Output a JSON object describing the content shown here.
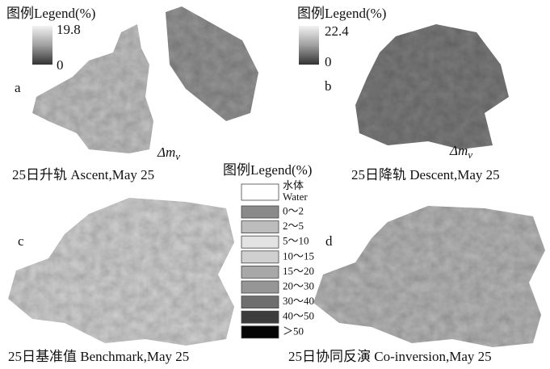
{
  "panels": [
    {
      "label": "a",
      "legend_title": "图例Legend(%)",
      "legend_max": "19.8",
      "legend_min": "0",
      "axis_label": "Δm",
      "axis_sub": "v",
      "caption": "25日升轨  Ascent,May  25"
    },
    {
      "label": "b",
      "legend_title": "图例Legend(%)",
      "legend_max": "22.4",
      "legend_min": "0",
      "axis_label": "Δm",
      "axis_sub": "v",
      "caption": "25日降轨  Descent,May  25"
    },
    {
      "label": "c",
      "caption": "25日基准值  Benchmark,May  25"
    },
    {
      "label": "d",
      "caption": "25日协同反演  Co-inversion,May  25"
    }
  ],
  "legend": {
    "title": "图例Legend(%)",
    "items": [
      {
        "label": "水体",
        "sublabel": "Water",
        "color": "#ffffff"
      },
      {
        "label": "0～2",
        "color": "#8a8a8a"
      },
      {
        "label": "2～5",
        "color": "#bdbdbd"
      },
      {
        "label": "5～10",
        "color": "#e3e3e3"
      },
      {
        "label": "10～15",
        "color": "#d0d0d0"
      },
      {
        "label": "15～20",
        "color": "#a8a8a8"
      },
      {
        "label": "20～30",
        "color": "#969696"
      },
      {
        "label": "30～40",
        "color": "#6e6e6e"
      },
      {
        "label": "40～50",
        "color": "#3c3c3c"
      },
      {
        "label": "＞50",
        "color": "#050505"
      }
    ]
  }
}
